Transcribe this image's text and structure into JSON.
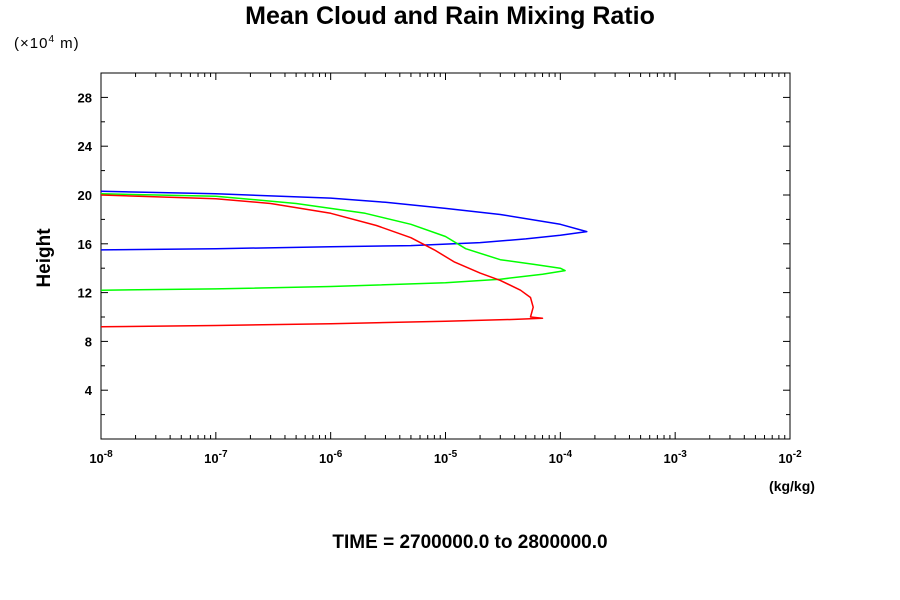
{
  "chart_data": {
    "type": "line",
    "title": "Mean Cloud and Rain Mixing Ratio",
    "y_multiplier_label": "(×10^4 m)",
    "ylabel": "Height",
    "xlabel": "(kg/kg)",
    "footer": "TIME = 2700000.0 to 2800000.0",
    "xscale": "log",
    "xlim": [
      1e-08,
      0.01
    ],
    "ylim": [
      0,
      30
    ],
    "x_ticks": [
      {
        "base": "10",
        "exp": "-8"
      },
      {
        "base": "10",
        "exp": "-7"
      },
      {
        "base": "10",
        "exp": "-6"
      },
      {
        "base": "10",
        "exp": "-5"
      },
      {
        "base": "10",
        "exp": "-4"
      },
      {
        "base": "10",
        "exp": "-3"
      },
      {
        "base": "10",
        "exp": "-2"
      }
    ],
    "y_ticks": [
      4,
      8,
      12,
      16,
      20,
      24,
      28
    ],
    "grid": false,
    "series": [
      {
        "color": "#0000ff",
        "points": [
          [
            1e-08,
            15.5
          ],
          [
            1e-07,
            15.6
          ],
          [
            1e-06,
            15.75
          ],
          [
            5e-06,
            15.85
          ],
          [
            2e-05,
            16.1
          ],
          [
            5e-05,
            16.4
          ],
          [
            0.0001,
            16.7
          ],
          [
            0.00017,
            17.0
          ],
          [
            0.0001,
            17.6
          ],
          [
            3e-05,
            18.4
          ],
          [
            1e-05,
            18.9
          ],
          [
            3e-06,
            19.4
          ],
          [
            1e-06,
            19.75
          ],
          [
            1e-07,
            20.1
          ],
          [
            1e-08,
            20.3
          ]
        ]
      },
      {
        "color": "#00ff00",
        "points": [
          [
            1e-08,
            12.2
          ],
          [
            1e-07,
            12.3
          ],
          [
            1e-06,
            12.5
          ],
          [
            1e-05,
            12.8
          ],
          [
            3e-05,
            13.1
          ],
          [
            7e-05,
            13.5
          ],
          [
            0.00011,
            13.8
          ],
          [
            0.0001,
            14.0
          ],
          [
            6e-05,
            14.3
          ],
          [
            3e-05,
            14.7
          ],
          [
            1.5e-05,
            15.6
          ],
          [
            1e-05,
            16.6
          ],
          [
            5e-06,
            17.6
          ],
          [
            2e-06,
            18.5
          ],
          [
            5e-07,
            19.3
          ],
          [
            1e-07,
            19.9
          ],
          [
            1e-08,
            20.1
          ]
        ]
      },
      {
        "color": "#ff0000",
        "points": [
          [
            1e-08,
            9.2
          ],
          [
            1e-07,
            9.3
          ],
          [
            1e-06,
            9.45
          ],
          [
            1e-05,
            9.65
          ],
          [
            4e-05,
            9.8
          ],
          [
            7e-05,
            9.9
          ],
          [
            5.5e-05,
            10.0
          ],
          [
            5.8e-05,
            10.8
          ],
          [
            5.5e-05,
            11.6
          ],
          [
            4.5e-05,
            12.2
          ],
          [
            3e-05,
            13.0
          ],
          [
            2e-05,
            13.6
          ],
          [
            1.2e-05,
            14.5
          ],
          [
            8e-06,
            15.5
          ],
          [
            5e-06,
            16.5
          ],
          [
            2.5e-06,
            17.5
          ],
          [
            1e-06,
            18.5
          ],
          [
            3e-07,
            19.3
          ],
          [
            1e-07,
            19.7
          ],
          [
            1e-08,
            20.0
          ]
        ]
      }
    ]
  }
}
